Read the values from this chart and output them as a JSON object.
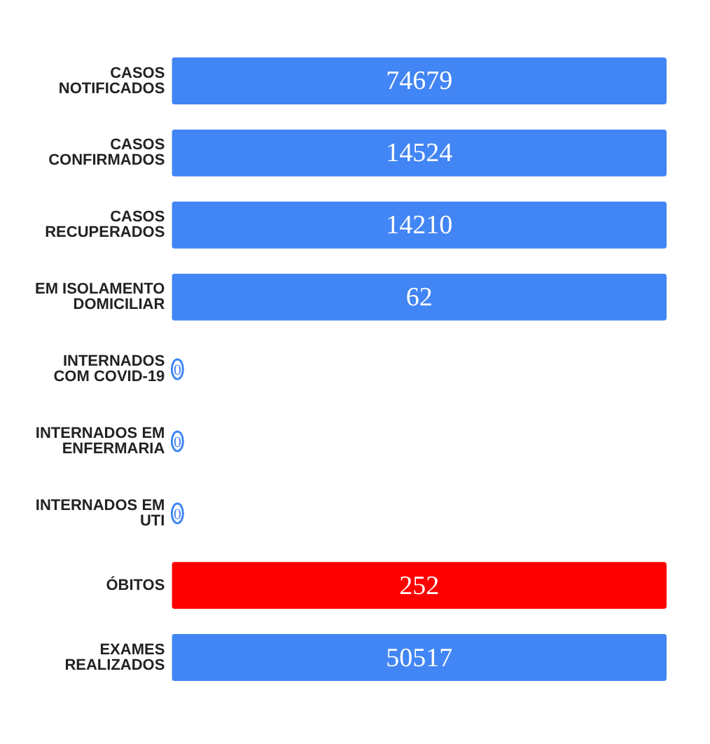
{
  "chart_data": {
    "type": "other",
    "categories": [
      "CASOS NOTIFICADOS",
      "CASOS CONFIRMADOS",
      "CASOS RECUPERADOS",
      "EM ISOLAMENTO DOMICILIAR",
      "INTERNADOS COM COVID-19",
      "INTERNADOS EM ENFERMARIA",
      "INTERNADOS EM UTI",
      "ÓBITOS",
      "EXAMES REALIZADOS"
    ],
    "values": [
      74679,
      14524,
      14210,
      62,
      0,
      0,
      0,
      252,
      50517
    ],
    "colors": [
      "#4285f4",
      "#4285f4",
      "#4285f4",
      "#4285f4",
      "#4285f4",
      "#4285f4",
      "#4285f4",
      "#ff0000",
      "#4285f4"
    ],
    "data_labels": true,
    "legend": false
  }
}
